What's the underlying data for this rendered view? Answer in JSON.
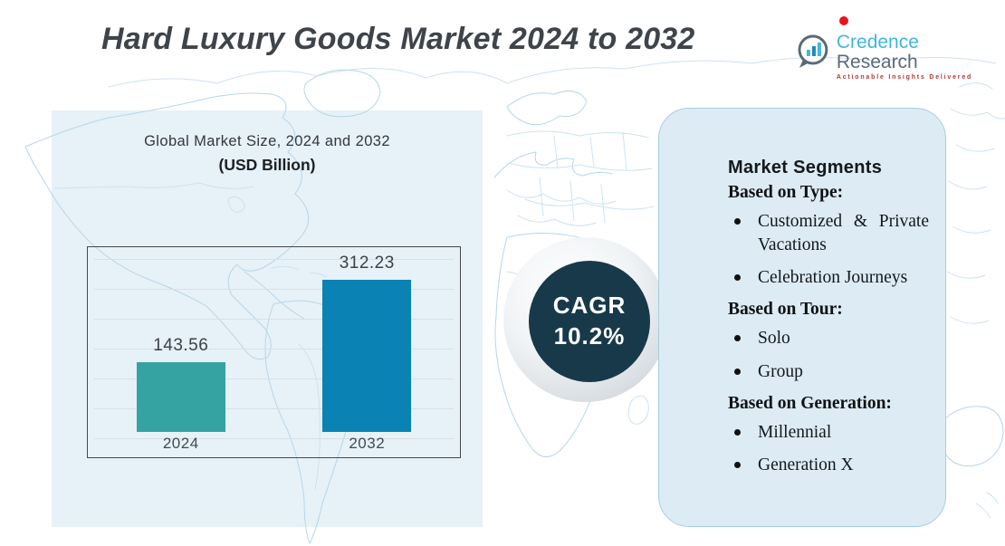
{
  "header": {
    "title": "Hard Luxury Goods Market 2024 to 2032",
    "logo": {
      "brand_primary": "Credence",
      "brand_secondary": " Research",
      "tagline": "Actionable Insights Delivered"
    }
  },
  "chart_data": {
    "type": "bar",
    "title": "Global Market Size, 2024 and 2032",
    "subtitle": "(USD Billion)",
    "categories": [
      "2024",
      "2032"
    ],
    "values": [
      143.56,
      312.23
    ],
    "value_labels": [
      "143.56",
      "312.23"
    ],
    "bar_colors": [
      "#35a3a2",
      "#0a82b4"
    ],
    "ylim": [
      0,
      350
    ],
    "grid": true,
    "legend_position": "none"
  },
  "cagr": {
    "label": "CAGR",
    "value": "10.2%"
  },
  "segments": {
    "title": "Market Segments",
    "groups": [
      {
        "heading": "Based on Type:",
        "items": [
          "Customized & Private Vacations",
          "Celebration Journeys"
        ]
      },
      {
        "heading": "Based on Tour:",
        "items": [
          "Solo",
          "Group"
        ]
      },
      {
        "heading": "Based on Generation:",
        "items": [
          "Millennial",
          "Generation X"
        ]
      }
    ]
  },
  "icons": {
    "logo_icon": "bar-chart-speech-bubble",
    "red_dot": "red-dot-marker"
  },
  "colors": {
    "bar_2024": "#35a3a2",
    "bar_2032": "#0a82b4",
    "cagr_circle": "#17394a",
    "left_panel_bg": "#e7f1f8",
    "segments_panel_bg": "#dcebf4",
    "map_stroke": "#b7d6e8",
    "brand_cyan": "#3fb7da",
    "brand_slate": "#5c6b79",
    "tagline_red": "#b03a33",
    "red_dot": "#e8141c",
    "title_text": "#3e4449"
  }
}
